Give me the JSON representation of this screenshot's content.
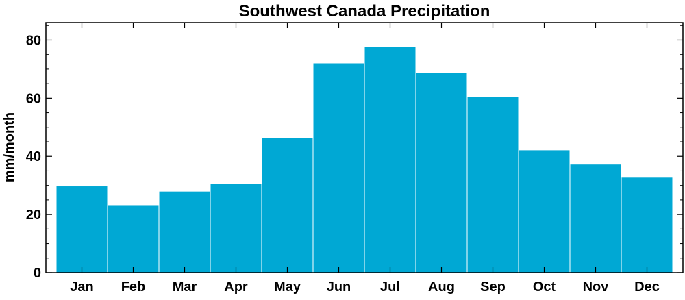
{
  "chart_data": {
    "type": "bar",
    "title": "Southwest Canada Precipitation",
    "xlabel": "",
    "ylabel": "mm/month",
    "categories": [
      "Jan",
      "Feb",
      "Mar",
      "Apr",
      "May",
      "Jun",
      "Jul",
      "Aug",
      "Sep",
      "Oct",
      "Nov",
      "Dec"
    ],
    "values": [
      29.8,
      23.1,
      28.0,
      30.6,
      46.5,
      72.1,
      77.8,
      68.8,
      60.5,
      42.2,
      37.3,
      32.8
    ],
    "ylim": [
      0,
      86
    ],
    "yticks": [
      0,
      20,
      40,
      60,
      80
    ],
    "grid": false,
    "bar_color": "#00a8d4",
    "bar_edge_color": "#ffffff"
  }
}
